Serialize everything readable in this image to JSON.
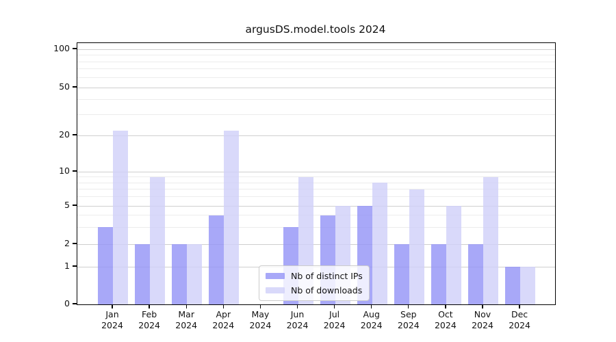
{
  "title": "argusDS.model.tools 2024",
  "chart_data": {
    "type": "bar",
    "title": "argusDS.model.tools 2024",
    "categories": [
      "Jan 2024",
      "Feb 2024",
      "Mar 2024",
      "Apr 2024",
      "May 2024",
      "Jun 2024",
      "Jul 2024",
      "Aug 2024",
      "Sep 2024",
      "Oct 2024",
      "Nov 2024",
      "Dec 2024"
    ],
    "series": [
      {
        "name": "Nb of distinct IPs",
        "color": "#9292f6",
        "alpha": 0.8,
        "values": [
          3,
          2,
          2,
          4,
          0,
          3,
          4,
          5,
          2,
          2,
          2,
          1
        ]
      },
      {
        "name": "Nb of downloads",
        "color": "#cfcff9",
        "alpha": 0.8,
        "values": [
          22,
          9,
          2,
          22,
          0,
          9,
          5,
          8,
          7,
          5,
          9,
          1
        ]
      }
    ],
    "xlabel": "",
    "ylabel": "",
    "yscale": "symlog",
    "ylim": [
      0,
      112
    ],
    "y_ticks": [
      0,
      1,
      2,
      5,
      10,
      20,
      50,
      100
    ],
    "y_minor_ticks": [
      3,
      4,
      6,
      7,
      8,
      9,
      30,
      40,
      60,
      70,
      80,
      90
    ],
    "grid": true,
    "legend_position": "lower center",
    "colors": {
      "spine": "#000000",
      "grid_major": "#cfcfcf",
      "grid_minor": "#ececec",
      "text": "#111111"
    }
  }
}
